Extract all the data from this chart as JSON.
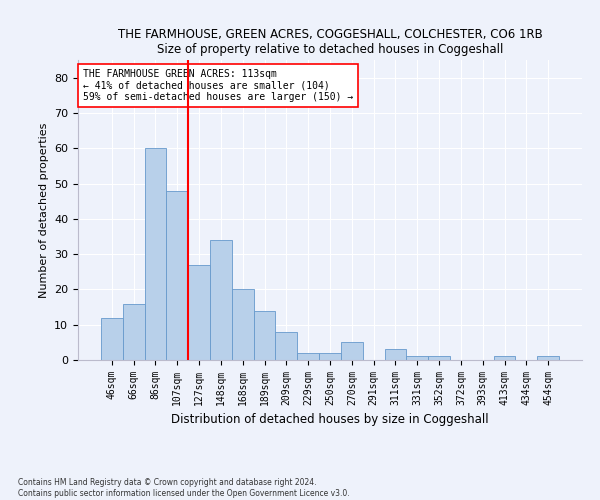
{
  "title": "THE FARMHOUSE, GREEN ACRES, COGGESHALL, COLCHESTER, CO6 1RB",
  "subtitle": "Size of property relative to detached houses in Coggeshall",
  "xlabel": "Distribution of detached houses by size in Coggeshall",
  "ylabel": "Number of detached properties",
  "bar_labels": [
    "46sqm",
    "66sqm",
    "86sqm",
    "107sqm",
    "127sqm",
    "148sqm",
    "168sqm",
    "189sqm",
    "209sqm",
    "229sqm",
    "250sqm",
    "270sqm",
    "291sqm",
    "311sqm",
    "331sqm",
    "352sqm",
    "372sqm",
    "393sqm",
    "413sqm",
    "434sqm",
    "454sqm"
  ],
  "bar_values": [
    12,
    16,
    60,
    48,
    27,
    34,
    20,
    14,
    8,
    2,
    2,
    5,
    0,
    3,
    1,
    1,
    0,
    0,
    1,
    0,
    1
  ],
  "bar_color": "#b8d0ea",
  "bar_edge_color": "#6699cc",
  "ylim": [
    0,
    85
  ],
  "yticks": [
    0,
    10,
    20,
    30,
    40,
    50,
    60,
    70,
    80
  ],
  "red_line_x": 3.5,
  "annotation_line1": "THE FARMHOUSE GREEN ACRES: 113sqm",
  "annotation_line2": "← 41% of detached houses are smaller (104)",
  "annotation_line3": "59% of semi-detached houses are larger (150) →",
  "footer_line1": "Contains HM Land Registry data © Crown copyright and database right 2024.",
  "footer_line2": "Contains public sector information licensed under the Open Government Licence v3.0.",
  "background_color": "#eef2fb",
  "plot_background": "#eef2fb"
}
